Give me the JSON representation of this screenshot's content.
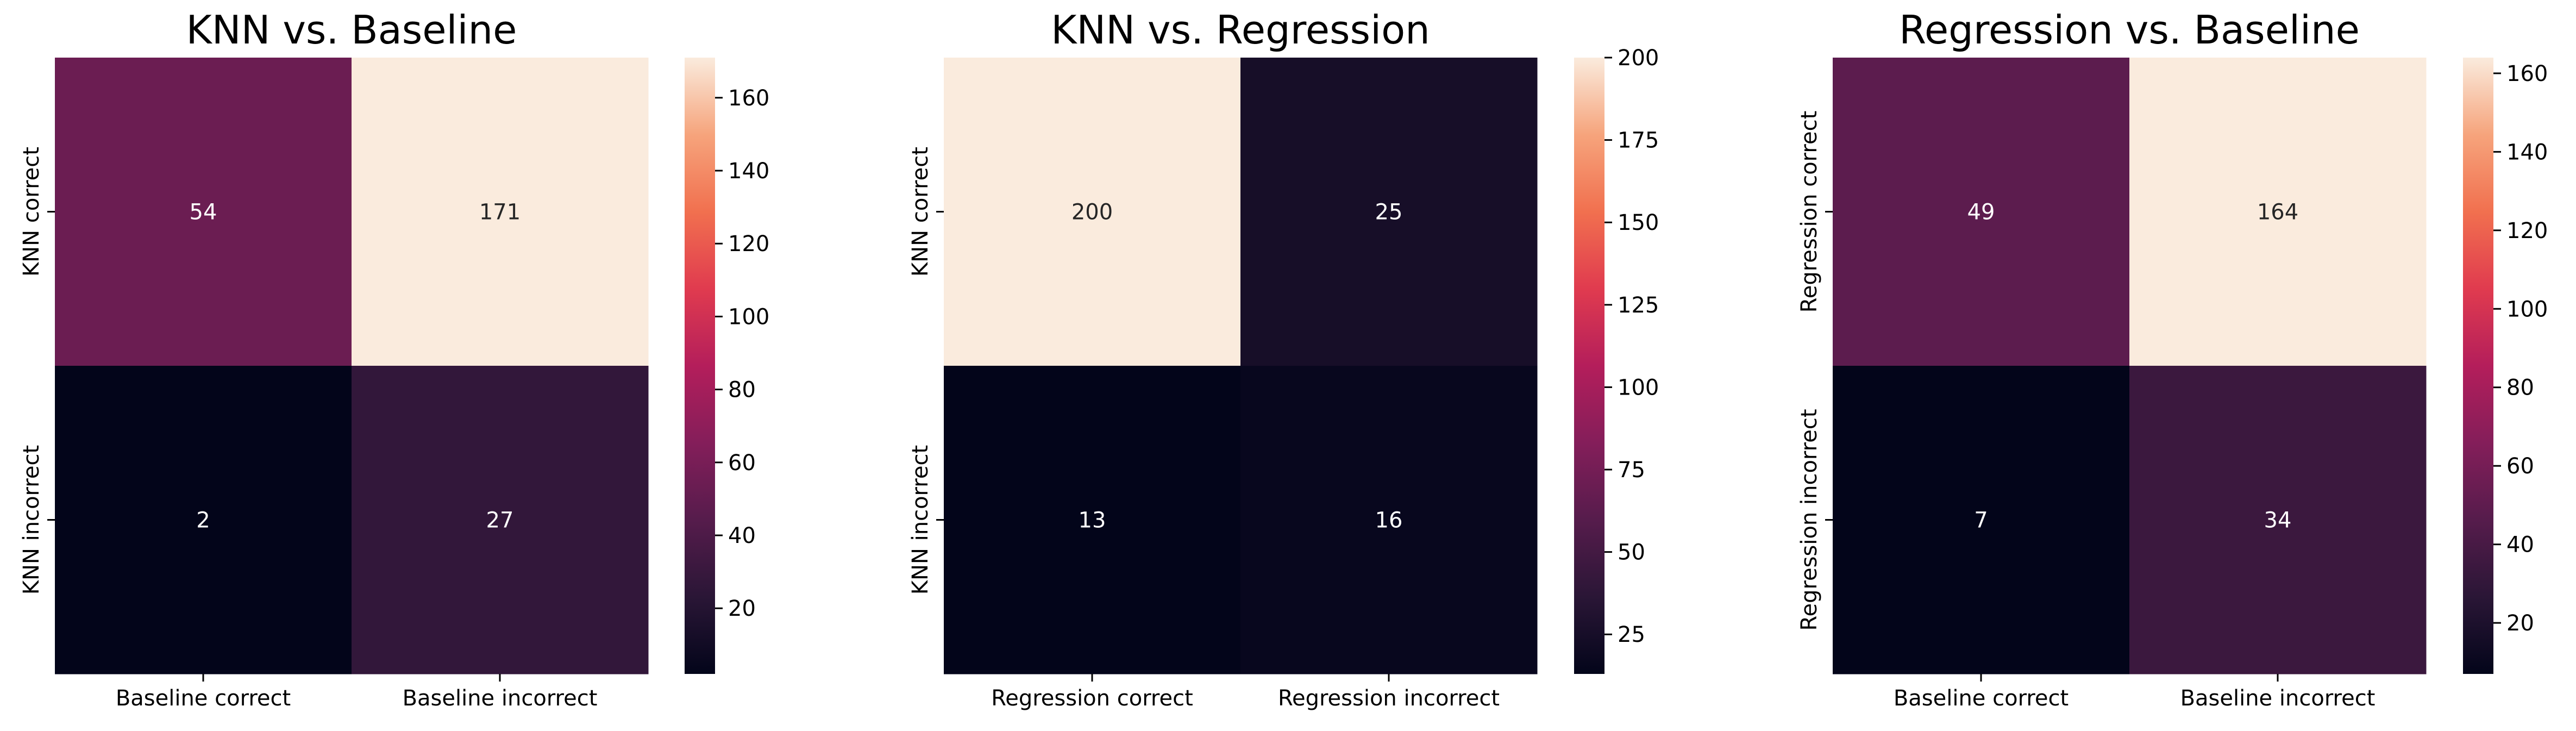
{
  "chart_data": [
    {
      "type": "heatmap",
      "title": "KNN vs. Baseline",
      "row_labels": [
        "KNN correct",
        "KNN incorrect"
      ],
      "col_labels": [
        "Baseline correct",
        "Baseline incorrect"
      ],
      "values": [
        [
          54,
          171
        ],
        [
          2,
          27
        ]
      ],
      "colorbar": {
        "range": [
          2,
          171
        ],
        "ticks": [
          20,
          40,
          60,
          80,
          100,
          120,
          140,
          160
        ],
        "colormap": "rocket"
      }
    },
    {
      "type": "heatmap",
      "title": "KNN vs. Regression",
      "row_labels": [
        "KNN correct",
        "KNN incorrect"
      ],
      "col_labels": [
        "Regression correct",
        "Regression incorrect"
      ],
      "values": [
        [
          200,
          25
        ],
        [
          13,
          16
        ]
      ],
      "colorbar": {
        "range": [
          13,
          200
        ],
        "ticks": [
          25,
          50,
          75,
          100,
          125,
          150,
          175,
          200
        ],
        "colormap": "rocket"
      }
    },
    {
      "type": "heatmap",
      "title": "Regression vs. Baseline",
      "row_labels": [
        "Regression correct",
        "Regression incorrect"
      ],
      "col_labels": [
        "Baseline correct",
        "Baseline incorrect"
      ],
      "values": [
        [
          49,
          164
        ],
        [
          7,
          34
        ]
      ],
      "colorbar": {
        "range": [
          7,
          164
        ],
        "ticks": [
          20,
          40,
          60,
          80,
          100,
          120,
          140,
          160
        ],
        "colormap": "rocket"
      }
    }
  ]
}
